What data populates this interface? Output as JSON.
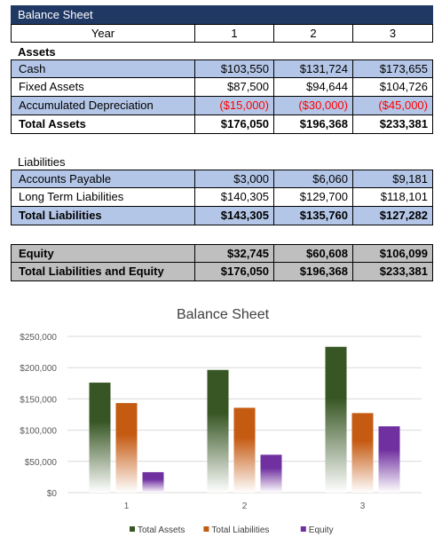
{
  "sheet": {
    "title": "Balance Sheet",
    "header": {
      "label": "Year",
      "cols": [
        "1",
        "2",
        "3"
      ]
    },
    "assets_heading": "Assets",
    "assets": [
      {
        "label": "Cash",
        "vals": [
          "$103,550",
          "$131,724",
          "$173,655"
        ]
      },
      {
        "label": "Fixed Assets",
        "vals": [
          "$87,500",
          "$94,644",
          "$104,726"
        ]
      },
      {
        "label": "Accumulated Depreciation",
        "vals": [
          "($15,000)",
          "($30,000)",
          "($45,000)"
        ]
      },
      {
        "label": "Total Assets",
        "vals": [
          "$176,050",
          "$196,368",
          "$233,381"
        ]
      }
    ],
    "liabilities_heading": "Liabilities",
    "liabilities": [
      {
        "label": "Accounts Payable",
        "vals": [
          "$3,000",
          "$6,060",
          "$9,181"
        ]
      },
      {
        "label": "Long Term Liabilities",
        "vals": [
          "$140,305",
          "$129,700",
          "$118,101"
        ]
      },
      {
        "label": "Total Liabilities",
        "vals": [
          "$143,305",
          "$135,760",
          "$127,282"
        ]
      }
    ],
    "equity": [
      {
        "label": "Equity",
        "vals": [
          "$32,745",
          "$60,608",
          "$106,099"
        ]
      },
      {
        "label": "Total Liabilities and Equity",
        "vals": [
          "$176,050",
          "$196,368",
          "$233,381"
        ]
      }
    ]
  },
  "chart_data": {
    "type": "bar",
    "title": "Balance Sheet",
    "categories": [
      "1",
      "2",
      "3"
    ],
    "series": [
      {
        "name": "Total Assets",
        "values": [
          176050,
          196368,
          233381
        ],
        "color": "#375623"
      },
      {
        "name": "Total Liabilities",
        "values": [
          143305,
          135760,
          127282
        ],
        "color": "#c55a11"
      },
      {
        "name": "Equity",
        "values": [
          32745,
          60608,
          106099
        ],
        "color": "#7030a0"
      }
    ],
    "ylim": [
      0,
      250000
    ],
    "yticks": [
      0,
      50000,
      100000,
      150000,
      200000,
      250000
    ],
    "ytick_labels": [
      "$0",
      "$50,000",
      "$100,000",
      "$150,000",
      "$200,000",
      "$250,000"
    ],
    "grid": true,
    "legend": "bottom"
  }
}
